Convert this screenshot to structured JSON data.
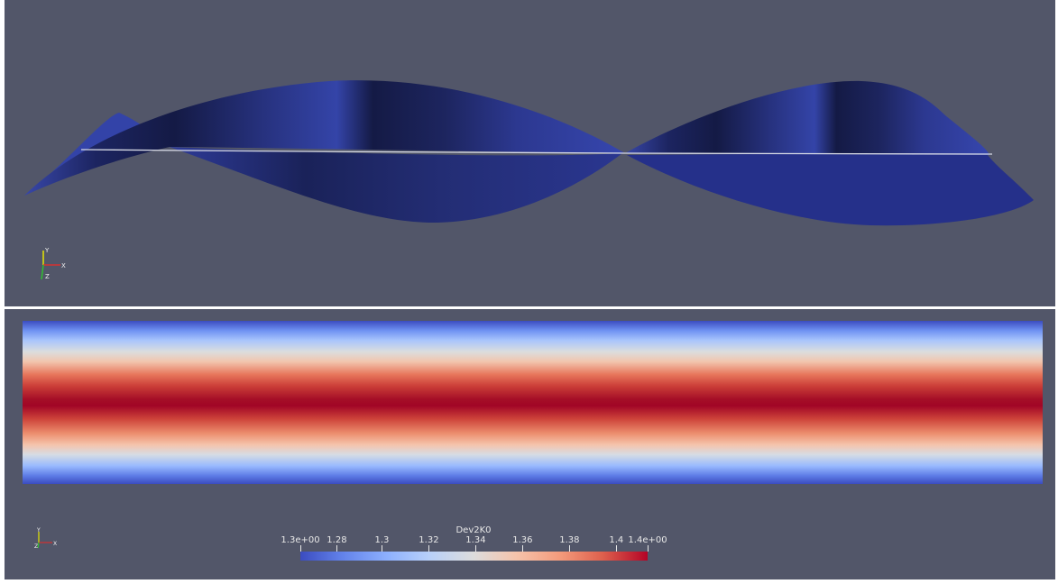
{
  "views": {
    "top": {
      "surface_color": "#3a4ab0",
      "axes": {
        "x": "X",
        "y": "Y",
        "z": "Z"
      }
    },
    "bottom": {
      "axes": {
        "x": "X",
        "y": "Y",
        "z": "Z"
      },
      "colorbar": {
        "title": "Dev2K0",
        "colormap": "Cool to Warm",
        "range": [
          1.3,
          1.4
        ],
        "labels": [
          {
            "text": "1.3e+00",
            "value": 1.3
          },
          {
            "text": "1.28",
            "value": 1.28
          },
          {
            "text": "1.3",
            "value": 1.3
          },
          {
            "text": "1.32",
            "value": 1.32
          },
          {
            "text": "1.34",
            "value": 1.34
          },
          {
            "text": "1.36",
            "value": 1.36
          },
          {
            "text": "1.38",
            "value": 1.38
          },
          {
            "text": "1.4",
            "value": 1.4
          },
          {
            "text": "1.4e+00",
            "value": 1.4
          }
        ]
      }
    }
  }
}
